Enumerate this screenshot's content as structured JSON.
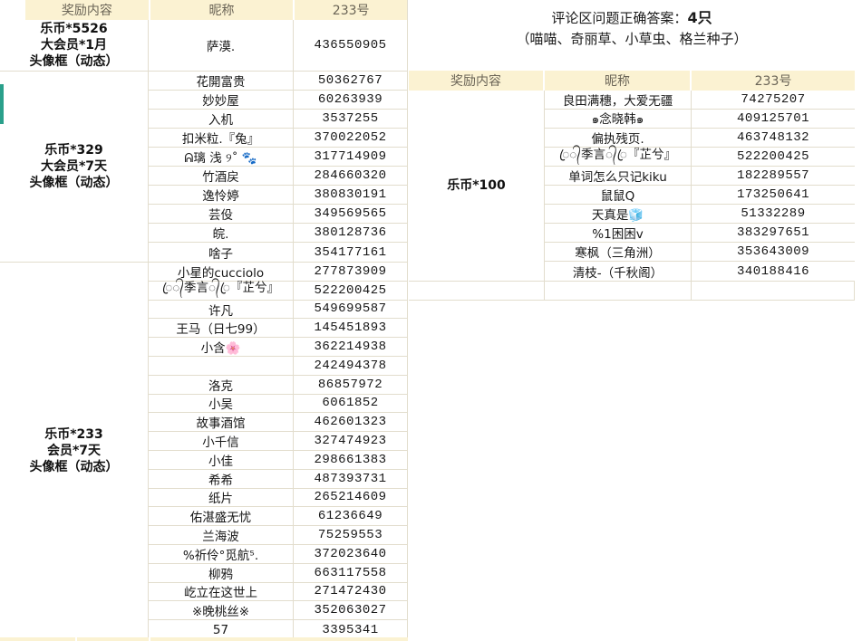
{
  "headers": {
    "reward": "奖励内容",
    "nickname": "昵称",
    "id": "233号"
  },
  "note": {
    "answer_label": "评论区问题正确答案：",
    "answer_value": "4只",
    "answer_detail": "（喵喵、奇丽草、小草虫、格兰种子）"
  },
  "colors": {
    "header_bg": "#fbf2d2",
    "grid_line": "#e2ddcd",
    "header_text": "#6a6456",
    "accent_green": "#2aa08b"
  },
  "left_table": {
    "sections": [
      {
        "reward": [
          "乐币*5526",
          "大会员*1月",
          "头像框（动态）"
        ],
        "rows": [
          {
            "nick": "萨漠.",
            "id": "436550905"
          }
        ]
      },
      {
        "reward": [
          "乐币*329",
          "大会员*7天",
          "头像框（动态）"
        ],
        "rows": [
          {
            "nick": "花開富贵",
            "id": "50362767"
          },
          {
            "nick": "妙妙屋",
            "id": "60263939"
          },
          {
            "nick": "入机",
            "id": "3537255"
          },
          {
            "nick": "扣米粒.『兔』",
            "id": "370022052"
          },
          {
            "nick": "ᕱ璃 浅 ୨˚ 🐾",
            "id": "317714909"
          },
          {
            "nick": "竹酒戻",
            "id": "284660320"
          },
          {
            "nick": "逸怜婷",
            "id": "380830191"
          },
          {
            "nick": "芸伇",
            "id": "349569565"
          },
          {
            "nick": "皖.",
            "id": "380128736"
          },
          {
            "nick": "啥子",
            "id": "354177161"
          }
        ]
      },
      {
        "reward": [
          "乐币*233",
          "会员*7天",
          "头像框（动态）"
        ],
        "rows": [
          {
            "nick": "小星的cucciolo",
            "id": "277873909"
          },
          {
            "nick": "ꦿ᭄季言᭄ꦿ『芷兮』",
            "id": "522200425"
          },
          {
            "nick": "许凡",
            "id": "549699587"
          },
          {
            "nick": "王马（日七99）",
            "id": "145451893"
          },
          {
            "nick": "小含🌸",
            "id": "362214938"
          },
          {
            "nick": "",
            "id": "242494378"
          },
          {
            "nick": "洛克",
            "id": "86857972"
          },
          {
            "nick": "小吴",
            "id": "6061852"
          },
          {
            "nick": "故事酒馆",
            "id": "462601323"
          },
          {
            "nick": "小千信",
            "id": "327474923"
          },
          {
            "nick": "小佳",
            "id": "298661383"
          },
          {
            "nick": "希希",
            "id": "487393731"
          },
          {
            "nick": "纸片",
            "id": "265214609"
          },
          {
            "nick": "佑湛盛无忧",
            "id": "61236649"
          },
          {
            "nick": "兰海波",
            "id": "75259553"
          },
          {
            "nick": "%祈伶°觅航⁵.",
            "id": "372023640"
          },
          {
            "nick": "柳鸦",
            "id": "663117558"
          },
          {
            "nick": "屹立在这世上",
            "id": "271472430"
          },
          {
            "nick": "※晚桃丝※",
            "id": "352063027"
          },
          {
            "nick": "57",
            "id": "3395341"
          }
        ]
      }
    ]
  },
  "right_table": {
    "sections": [
      {
        "reward": [
          "乐币*100"
        ],
        "rows": [
          {
            "nick": "良田满穗，大爱无疆",
            "id": "74275207"
          },
          {
            "nick": "๑念晓韩๑",
            "id": "409125701"
          },
          {
            "nick": "偏执残页.",
            "id": "463748132"
          },
          {
            "nick": "ꦿ᭄季言᭄ꦿ『芷兮』",
            "id": "522200425"
          },
          {
            "nick": "单词怎么只记kiku",
            "id": "182289557"
          },
          {
            "nick": "鼠鼠Q",
            "id": "173250641"
          },
          {
            "nick": "天真是🧊",
            "id": "51332289"
          },
          {
            "nick": "%1困困v",
            "id": "383297651"
          },
          {
            "nick": "寒枫（三角洲）",
            "id": "353643009"
          },
          {
            "nick": "清枝-（千秋阁）",
            "id": "340188416"
          }
        ]
      }
    ]
  }
}
